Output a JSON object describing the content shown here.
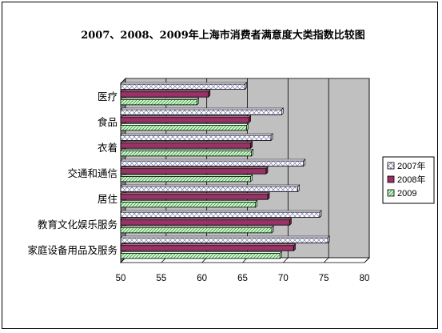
{
  "chart_data": {
    "type": "bar",
    "orientation": "horizontal",
    "title": "2007、2008、2009年上海市消费者满意度大类指数比较图",
    "categories": [
      "医疗",
      "食品",
      "衣着",
      "交通和通信",
      "居住",
      "教育文化娱乐服务",
      "家庭设备用品及服务"
    ],
    "series": [
      {
        "name": "2007年",
        "values": [
          65.3,
          69.8,
          68.5,
          72.5,
          71.8,
          74.5,
          75.5
        ]
      },
      {
        "name": "2008年",
        "values": [
          60.8,
          65.8,
          66.0,
          67.9,
          68.1,
          70.8,
          71.3
        ]
      },
      {
        "name": "2009",
        "values": [
          59.4,
          65.5,
          66.1,
          66.0,
          66.6,
          68.6,
          69.6
        ]
      }
    ],
    "xlim": [
      50,
      80
    ],
    "xticks": [
      "50",
      "55",
      "60",
      "65",
      "70",
      "75",
      "80"
    ],
    "grid": true,
    "legend_position": "right",
    "colors": {
      "plot_back": "#c0c0c0",
      "plot_side": "#808080",
      "series_2007": "#ffffff",
      "series_2008": "#993366",
      "series_2009": "#ccffcc"
    }
  }
}
